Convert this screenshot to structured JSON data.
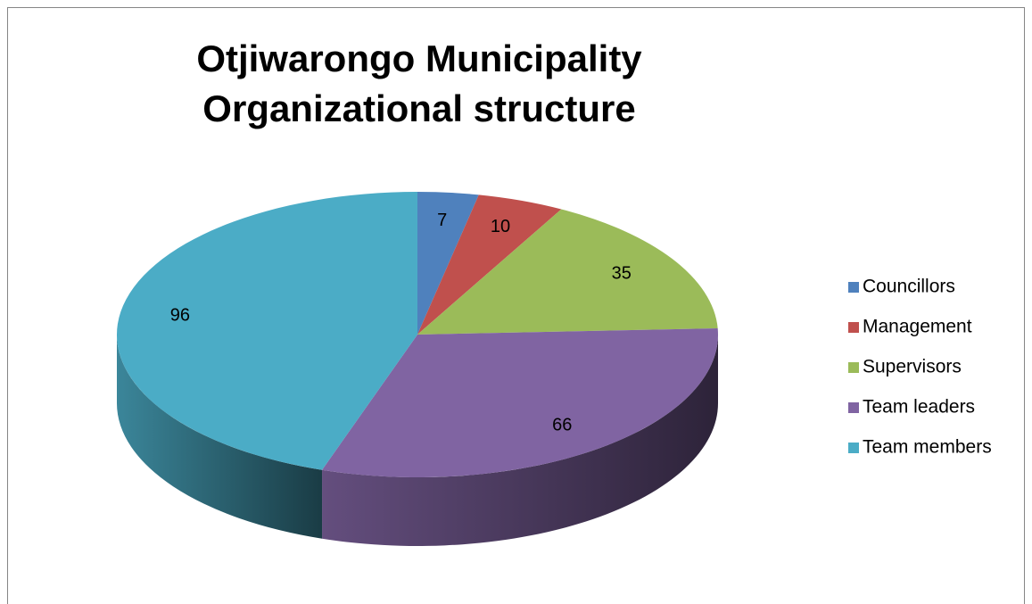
{
  "chart_data": {
    "type": "pie",
    "title": "Otjiwarongo Municipality Organizational structure",
    "categories": [
      "Councillors",
      "Management",
      "Supervisors",
      "Team leaders",
      "Team members"
    ],
    "values": [
      7,
      10,
      35,
      66,
      96
    ],
    "colors": [
      "#4f81bd",
      "#c0504d",
      "#9bbb59",
      "#8064a2",
      "#4bacc6"
    ],
    "legend": "right"
  }
}
